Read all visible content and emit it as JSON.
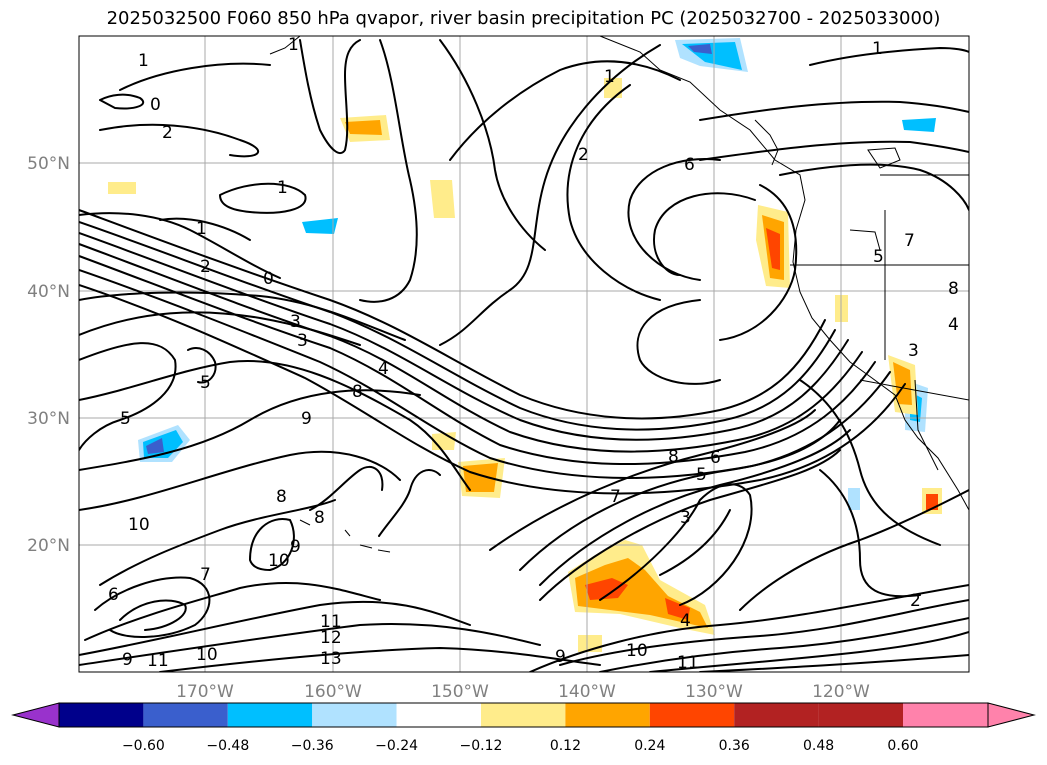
{
  "title": "2025032500 F060 850 hPa qvapor, river basin precipitation PC (2025032700 - 2025033000)",
  "lat_labels": [
    "50°N",
    "40°N",
    "30°N",
    "20°N"
  ],
  "lon_labels": [
    "170°W",
    "160°W",
    "150°W",
    "140°W",
    "130°W",
    "120°W"
  ],
  "colorbar": {
    "colors": [
      "#9932cc",
      "#00008b",
      "#3a5fcd",
      "#00bfff",
      "#b0e2ff",
      "#ffffff",
      "#ffec8b",
      "#ffa500",
      "#ff4500",
      "#b22222",
      "#ff82ab"
    ],
    "ticks": [
      "−0.60",
      "−0.48",
      "−0.36",
      "−0.24",
      "−0.12",
      "0.12",
      "0.24",
      "0.36",
      "0.48",
      "0.60"
    ]
  },
  "contour_labels": [
    "1",
    "0",
    "2",
    "1",
    "1",
    "2",
    "0",
    "3",
    "3",
    "5",
    "5",
    "4",
    "8",
    "9",
    "8",
    "8",
    "10",
    "9",
    "10",
    "6",
    "7",
    "11",
    "12",
    "13",
    "9",
    "11",
    "10",
    "9",
    "10",
    "11",
    "7",
    "3",
    "5",
    "6",
    "8",
    "2",
    "4",
    "1",
    "6",
    "3",
    "5",
    "7",
    "8",
    "4",
    "1",
    "2",
    "1"
  ]
}
